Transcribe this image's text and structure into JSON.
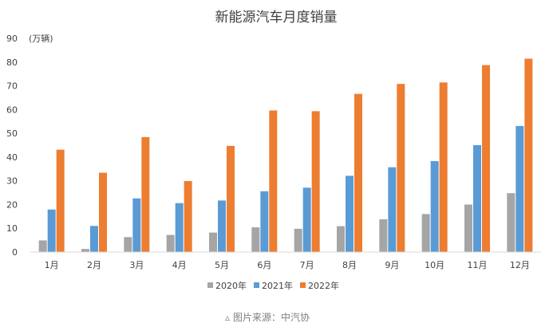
{
  "chart_data": {
    "type": "bar",
    "title": "新能源汽车月度销量",
    "unit_label": "(万辆)",
    "categories": [
      "1月",
      "2月",
      "3月",
      "4月",
      "5月",
      "6月",
      "7月",
      "8月",
      "9月",
      "10月",
      "11月",
      "12月"
    ],
    "series": [
      {
        "name": "2020年",
        "color": "#a5a5a5",
        "values": [
          4.9,
          1.3,
          6.3,
          7.2,
          8.2,
          10.4,
          9.8,
          10.9,
          13.8,
          16.0,
          20.0,
          24.8
        ]
      },
      {
        "name": "2021年",
        "color": "#5b9bd5",
        "values": [
          17.9,
          11.0,
          22.6,
          20.6,
          21.7,
          25.6,
          27.1,
          32.1,
          35.7,
          38.3,
          45.0,
          53.1
        ]
      },
      {
        "name": "2022年",
        "color": "#ed7d31",
        "values": [
          43.1,
          33.4,
          48.4,
          29.9,
          44.7,
          59.6,
          59.3,
          66.6,
          70.8,
          71.4,
          78.7,
          81.4
        ]
      }
    ],
    "ylim": [
      0,
      90
    ],
    "yticks": [
      0,
      10,
      20,
      30,
      40,
      50,
      60,
      70,
      80,
      90
    ],
    "grid": false,
    "legend_position": "bottom"
  },
  "caption": {
    "icon": "triangle-icon",
    "text": "图片来源：中汽协"
  }
}
